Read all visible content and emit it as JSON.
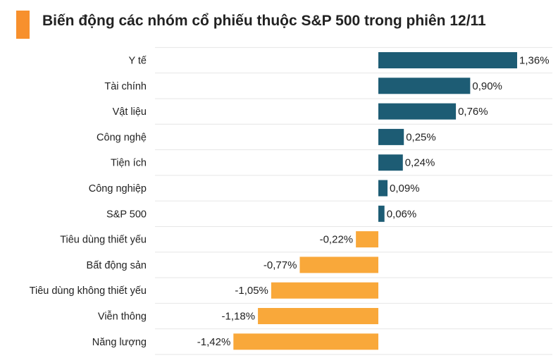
{
  "title": "Biến động các nhóm cổ phiếu thuộc S&P 500 trong phiên 12/11",
  "colors": {
    "accent": "#F7902D",
    "positive": "#1D5C74",
    "negative": "#F9A83A",
    "gridline": "#E6E6E6",
    "text": "#222222"
  },
  "chart_data": {
    "type": "bar",
    "orientation": "horizontal",
    "title": "Biến động các nhóm cổ phiếu thuộc S&P 500 trong phiên 12/11",
    "xlabel": "",
    "ylabel": "",
    "unit": "%",
    "xlim": [
      -1.77,
      1.36
    ],
    "grid": true,
    "categories": [
      "Y tế",
      "Tài chính",
      "Vật liệu",
      "Công nghệ",
      "Tiện ích",
      "Công nghiệp",
      "S&P 500",
      "Tiêu dùng thiết yếu",
      "Bất động sản",
      "Tiêu dùng không thiết yếu",
      "Viễn thông",
      "Năng lượng"
    ],
    "values": [
      1.36,
      0.9,
      0.76,
      0.25,
      0.24,
      0.09,
      0.06,
      -0.22,
      -0.77,
      -1.05,
      -1.18,
      -1.42
    ],
    "labels": [
      "1,36%",
      "0,90%",
      "0,76%",
      "0,25%",
      "0,24%",
      "0,09%",
      "0,06%",
      "-0,22%",
      "-0,77%",
      "-1,05%",
      "-1,18%",
      "-1,42%"
    ]
  }
}
